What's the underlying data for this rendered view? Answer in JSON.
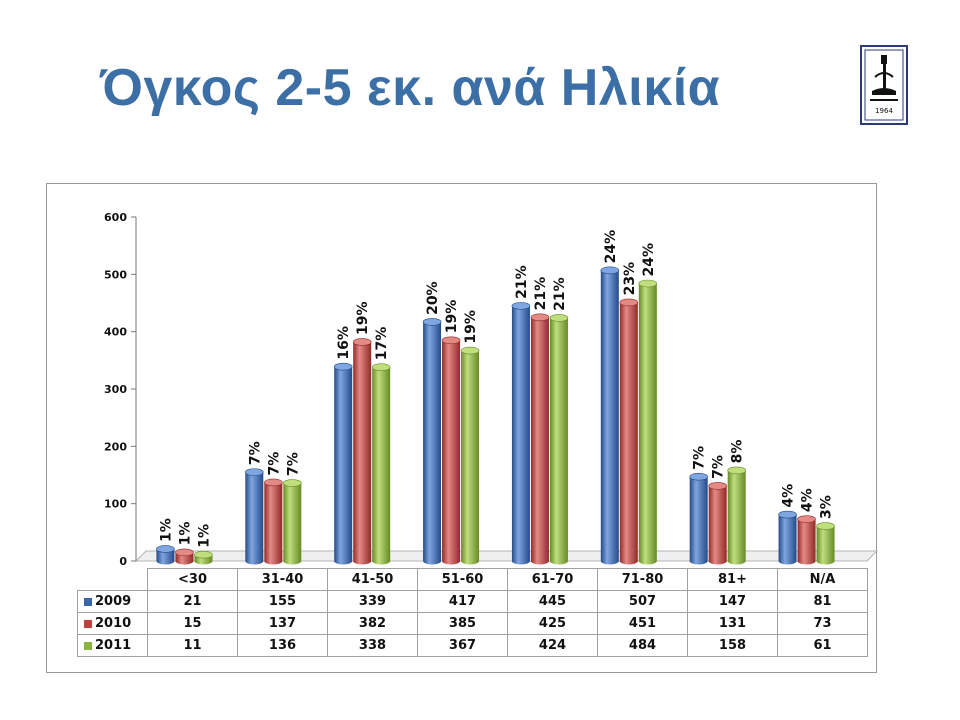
{
  "slide": {
    "title": "Όγκος 2-5 εκ. ανά Ηλικία",
    "logo_year": "1964"
  },
  "colors": {
    "title": "#3b6fa6",
    "series": [
      "#3a66b0",
      "#c0403c",
      "#8cb33e"
    ],
    "series_dark": [
      "#244a8a",
      "#922a27",
      "#668a25"
    ],
    "series_light": [
      "#7fa6e0",
      "#e48a86",
      "#bfdf7c"
    ]
  },
  "chart_data": {
    "type": "bar",
    "categories": [
      "<30",
      "31-40",
      "41-50",
      "51-60",
      "61-70",
      "71-80",
      "81+",
      "N/A"
    ],
    "series": [
      {
        "name": "2009",
        "values": [
          21,
          155,
          339,
          417,
          445,
          507,
          147,
          81
        ],
        "labels": [
          "1%",
          "7%",
          "16%",
          "20%",
          "21%",
          "24%",
          "7%",
          "4%"
        ]
      },
      {
        "name": "2010",
        "values": [
          15,
          137,
          382,
          385,
          425,
          451,
          131,
          73
        ],
        "labels": [
          "1%",
          "7%",
          "19%",
          "19%",
          "21%",
          "23%",
          "7%",
          "4%"
        ]
      },
      {
        "name": "2011",
        "values": [
          11,
          136,
          338,
          367,
          424,
          484,
          158,
          61
        ],
        "labels": [
          "1%",
          "7%",
          "17%",
          "19%",
          "21%",
          "24%",
          "8%",
          "3%"
        ]
      }
    ],
    "ylim": [
      0,
      600
    ],
    "yticks": [
      "0",
      "100",
      "200",
      "300",
      "400",
      "500",
      "600"
    ],
    "legend": "data table below chart",
    "grid": false
  }
}
